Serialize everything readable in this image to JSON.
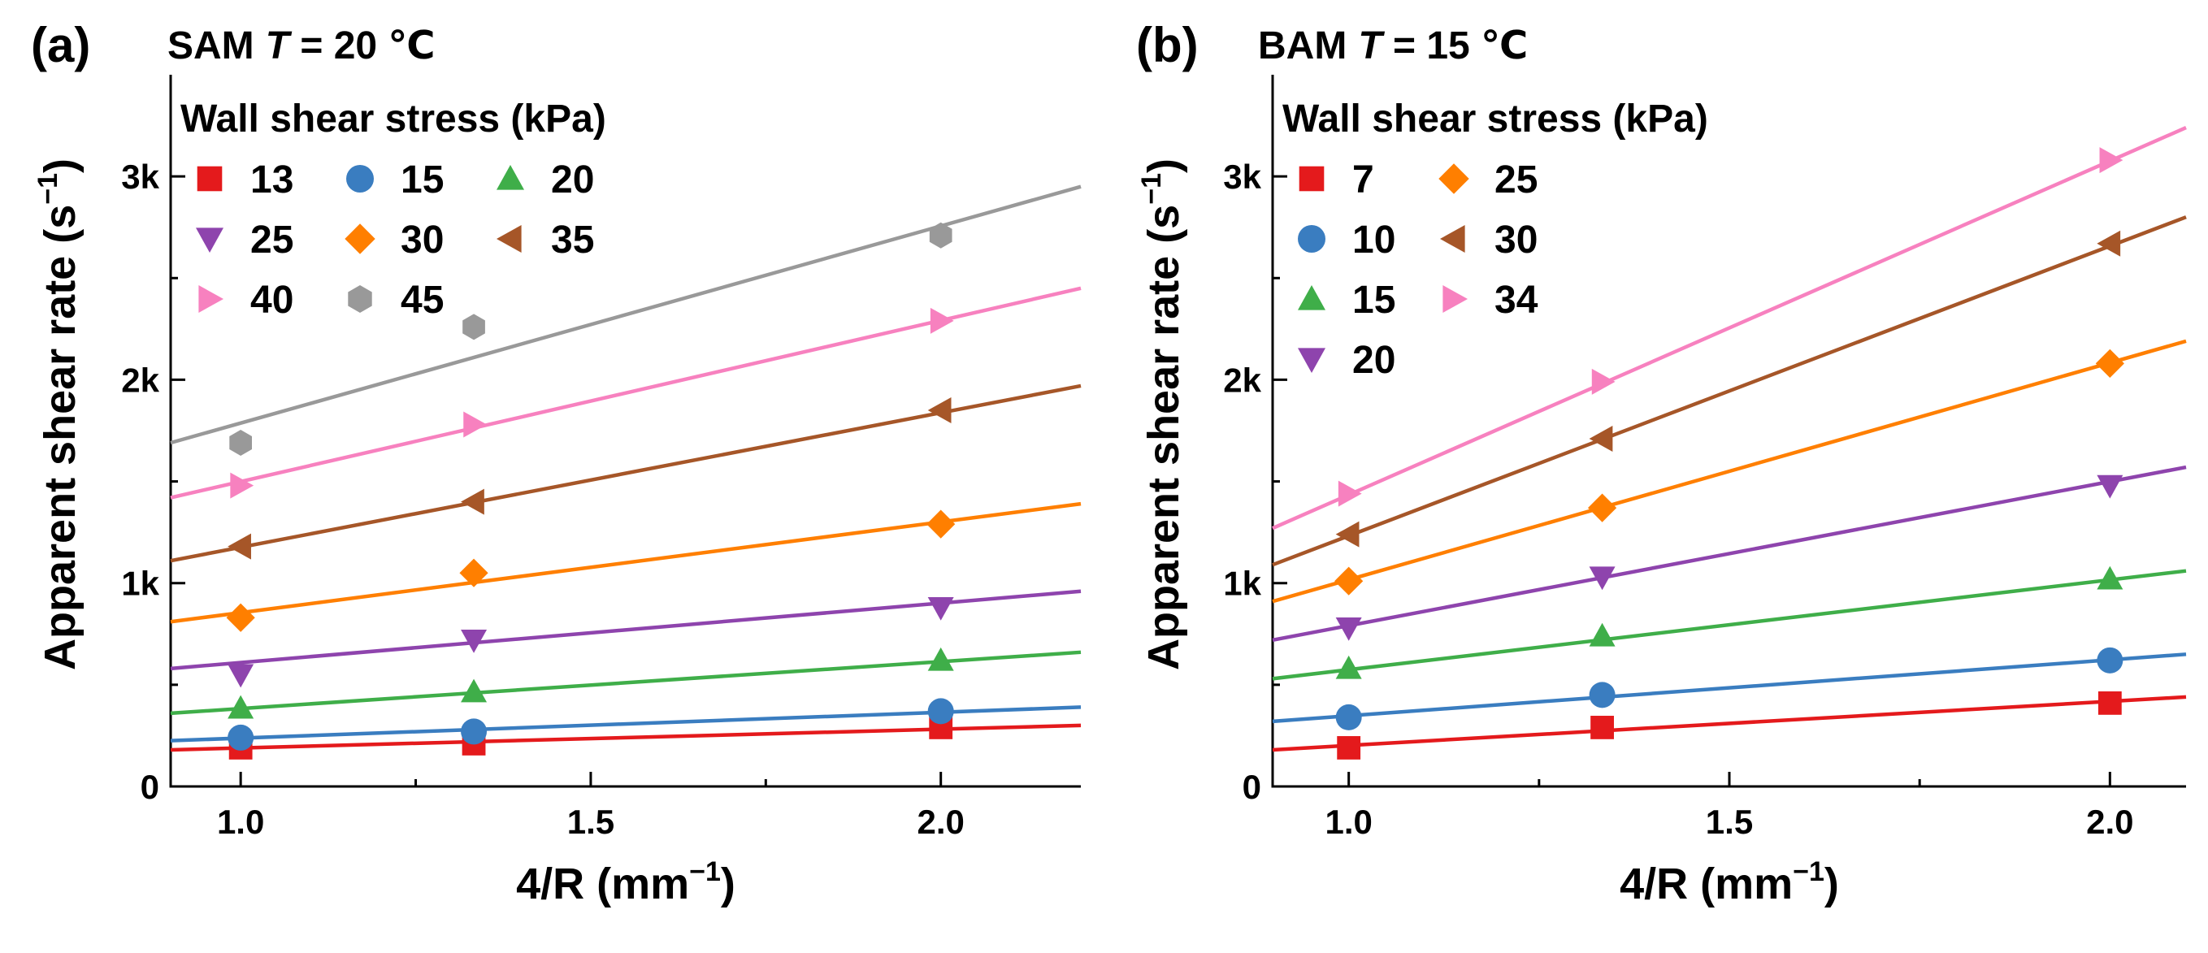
{
  "chart_data": [
    {
      "type": "scatter",
      "panel_label": "(a)",
      "title": {
        "material": "SAM",
        "var": "T",
        "rest": " = 20 ℃"
      },
      "xlabel": "4/R (mm",
      "xlabel_sup": "−1",
      "xlabel_end": ")",
      "ylabel": "Apparent shear rate (s",
      "ylabel_sup": "−1",
      "ylabel_end": ")",
      "xlim": [
        0.9,
        2.2
      ],
      "ylim": [
        0,
        3500
      ],
      "xticks": [
        1.0,
        1.5,
        2.0
      ],
      "xtick_labels": [
        "1.0",
        "1.5",
        "2.0"
      ],
      "yticks": [
        0,
        1000,
        2000,
        3000
      ],
      "ytick_labels": [
        "0",
        "1k",
        "2k",
        "3k"
      ],
      "legend_title": "Wall shear stress (kPa)",
      "legend_columns": 3,
      "x": [
        1.0,
        1.333,
        2.0
      ],
      "series": [
        {
          "name": "13",
          "marker": "square",
          "color": "#e41a1c",
          "values": [
            190,
            210,
            290
          ],
          "fit": [
            180,
            300
          ]
        },
        {
          "name": "15",
          "marker": "circle",
          "color": "#3a7dc0",
          "values": [
            240,
            270,
            370
          ],
          "fit": [
            225,
            390
          ]
        },
        {
          "name": "20",
          "marker": "triangle-up",
          "color": "#3fae49",
          "values": [
            385,
            465,
            620
          ],
          "fit": [
            360,
            660
          ]
        },
        {
          "name": "25",
          "marker": "triangle-down",
          "color": "#8e44ad",
          "values": [
            550,
            720,
            880
          ],
          "fit": [
            580,
            960
          ]
        },
        {
          "name": "30",
          "marker": "diamond",
          "color": "#ff7f00",
          "values": [
            830,
            1050,
            1290
          ],
          "fit": [
            810,
            1390
          ]
        },
        {
          "name": "35",
          "marker": "triangle-left",
          "color": "#a65628",
          "values": [
            1180,
            1400,
            1850
          ],
          "fit": [
            1110,
            1970
          ]
        },
        {
          "name": "40",
          "marker": "triangle-right",
          "color": "#f781bf",
          "values": [
            1480,
            1780,
            2290
          ],
          "fit": [
            1420,
            2450
          ]
        },
        {
          "name": "45",
          "marker": "hexagon",
          "color": "#999999",
          "values": [
            1690,
            2260,
            2710
          ],
          "fit": [
            1690,
            2950
          ]
        }
      ]
    },
    {
      "type": "scatter",
      "panel_label": "(b)",
      "title": {
        "material": "BAM",
        "var": "T",
        "rest": " = 15 ℃"
      },
      "xlabel": "4/R (mm",
      "xlabel_sup": "−1",
      "xlabel_end": ")",
      "ylabel": "Apparent shear rate (s",
      "ylabel_sup": "−1",
      "ylabel_end": ")",
      "xlim": [
        0.9,
        2.1
      ],
      "ylim": [
        0,
        3500
      ],
      "xticks": [
        1.0,
        1.5,
        2.0
      ],
      "xtick_labels": [
        "1.0",
        "1.5",
        "2.0"
      ],
      "yticks": [
        0,
        1000,
        2000,
        3000
      ],
      "ytick_labels": [
        "0",
        "1k",
        "2k",
        "3k"
      ],
      "legend_title": "Wall shear stress (kPa)",
      "legend_columns": 2,
      "x": [
        1.0,
        1.333,
        2.0
      ],
      "series": [
        {
          "name": "7",
          "marker": "square",
          "color": "#e41a1c",
          "values": [
            190,
            290,
            410
          ],
          "fit": [
            180,
            440
          ]
        },
        {
          "name": "10",
          "marker": "circle",
          "color": "#3a7dc0",
          "values": [
            340,
            450,
            620
          ],
          "fit": [
            320,
            650
          ]
        },
        {
          "name": "15",
          "marker": "triangle-up",
          "color": "#3fae49",
          "values": [
            580,
            740,
            1020
          ],
          "fit": [
            530,
            1060
          ]
        },
        {
          "name": "20",
          "marker": "triangle-down",
          "color": "#8e44ad",
          "values": [
            780,
            1030,
            1480
          ],
          "fit": [
            720,
            1570
          ]
        },
        {
          "name": "25",
          "marker": "diamond",
          "color": "#ff7f00",
          "values": [
            1010,
            1370,
            2080
          ],
          "fit": [
            910,
            2190
          ]
        },
        {
          "name": "30",
          "marker": "triangle-left",
          "color": "#a65628",
          "values": [
            1240,
            1710,
            2670
          ],
          "fit": [
            1090,
            2800
          ]
        },
        {
          "name": "34",
          "marker": "triangle-right",
          "color": "#f781bf",
          "values": [
            1440,
            1990,
            3080
          ],
          "fit": [
            1270,
            3240
          ]
        }
      ]
    }
  ]
}
